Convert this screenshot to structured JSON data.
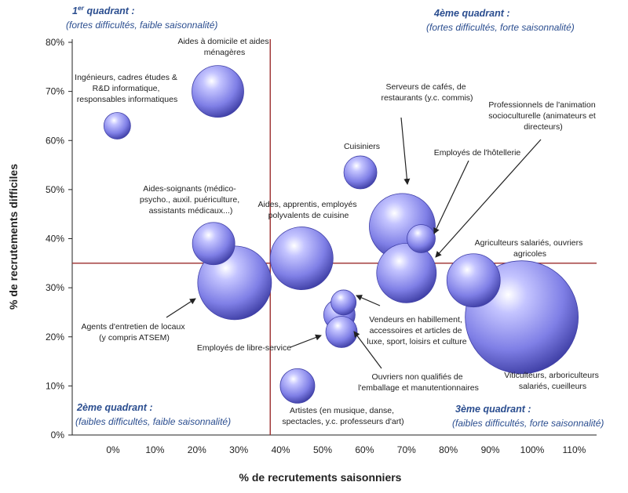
{
  "chart_data": {
    "type": "scatter",
    "subtype": "bubble",
    "xlabel": "% de recrutements saisonniers",
    "ylabel": "% de recrutements difficiles",
    "xlim": [
      -0.1,
      1.15
    ],
    "ylim": [
      0,
      0.8
    ],
    "x_ticks": [
      "0%",
      "10%",
      "20%",
      "30%",
      "40%",
      "50%",
      "60%",
      "70%",
      "80%",
      "90%",
      "100%",
      "110%"
    ],
    "x_tick_values": [
      0,
      0.1,
      0.2,
      0.3,
      0.4,
      0.5,
      0.6,
      0.7,
      0.8,
      0.9,
      1.0,
      1.1
    ],
    "y_ticks": [
      "0%",
      "10%",
      "20%",
      "30%",
      "40%",
      "50%",
      "60%",
      "70%",
      "80%"
    ],
    "y_tick_values": [
      0,
      0.1,
      0.2,
      0.3,
      0.4,
      0.5,
      0.6,
      0.7,
      0.8
    ],
    "reference_lines": {
      "x": 0.375,
      "y": 0.35
    },
    "bubble_color": "#7f7fe6",
    "reference_line_color": "#9b2d2d",
    "grid": false,
    "points": [
      {
        "x": 0.01,
        "y": 0.63,
        "r": 17
      },
      {
        "x": 0.25,
        "y": 0.7,
        "r": 33
      },
      {
        "x": 0.24,
        "y": 0.39,
        "r": 27
      },
      {
        "x": 0.29,
        "y": 0.31,
        "r": 47
      },
      {
        "x": 0.45,
        "y": 0.36,
        "r": 40
      },
      {
        "x": 0.44,
        "y": 0.1,
        "r": 22
      },
      {
        "x": 0.55,
        "y": 0.27,
        "r": 16
      },
      {
        "x": 0.54,
        "y": 0.245,
        "r": 20
      },
      {
        "x": 0.545,
        "y": 0.21,
        "r": 20
      },
      {
        "x": 0.59,
        "y": 0.535,
        "r": 21
      },
      {
        "x": 0.69,
        "y": 0.425,
        "r": 42
      },
      {
        "x": 0.735,
        "y": 0.4,
        "r": 18
      },
      {
        "x": 0.7,
        "y": 0.33,
        "r": 38
      },
      {
        "x": 0.86,
        "y": 0.315,
        "r": 34
      },
      {
        "x": 0.975,
        "y": 0.24,
        "r": 72
      }
    ],
    "annotations": [
      {
        "lines": [
          "Ingénieurs, cadres études &",
          "R&D informatique,",
          "responsables informatiques"
        ]
      },
      {
        "lines": [
          "Aides à domicile et aides",
          "ménagères"
        ]
      },
      {
        "lines": [
          "Serveurs de cafés, de",
          "restaurants (y.c. commis)"
        ]
      },
      {
        "lines": [
          "Professionnels de l'animation",
          "socioculturelle (animateurs et",
          "directeurs)"
        ]
      },
      {
        "lines": [
          "Cuisiniers"
        ]
      },
      {
        "lines": [
          "Employés de l'hôtellerie"
        ]
      },
      {
        "lines": [
          "Aides-soignants (médico-",
          "psycho., auxil. puériculture,",
          "assistants médicaux...)"
        ]
      },
      {
        "lines": [
          "Aides, apprentis, employés",
          "polyvalents de cuisine"
        ]
      },
      {
        "lines": [
          "Agriculteurs salariés, ouvriers",
          "agricoles"
        ]
      },
      {
        "lines": [
          "Agents d'entretien de locaux",
          "(y compris ATSEM)"
        ]
      },
      {
        "lines": [
          "Employés de libre-service"
        ]
      },
      {
        "lines": [
          "Vendeurs en habillement,",
          "accessoires et articles de",
          "luxe, sport, loisirs et culture"
        ]
      },
      {
        "lines": [
          "Ouvriers non qualifiés de",
          "l'emballage et manutentionnaires"
        ]
      },
      {
        "lines": [
          "Viticulteurs, arboriculteurs",
          "salariés, cueilleurs"
        ]
      },
      {
        "lines": [
          "Artistes (en musique, danse,",
          "spectacles, y.c. professeurs d'art)"
        ]
      }
    ],
    "quadrants": [
      {
        "title_base": "1",
        "title_sup": "er",
        "title_rest": " quadrant :",
        "subtitle": "(fortes difficultés, faible saisonnalité)"
      },
      {
        "title_base": "4ème quadrant :",
        "title_sup": "",
        "title_rest": "",
        "subtitle": "(fortes difficultés, forte saisonnalité)"
      },
      {
        "title_base": "2ème quadrant :",
        "title_sup": "",
        "title_rest": "",
        "subtitle": "(faibles difficultés, faible saisonnalité)"
      },
      {
        "title_base": "3ème quadrant :",
        "title_sup": "",
        "title_rest": "",
        "subtitle": "(faibles difficultés, forte saisonnalité)"
      }
    ]
  }
}
